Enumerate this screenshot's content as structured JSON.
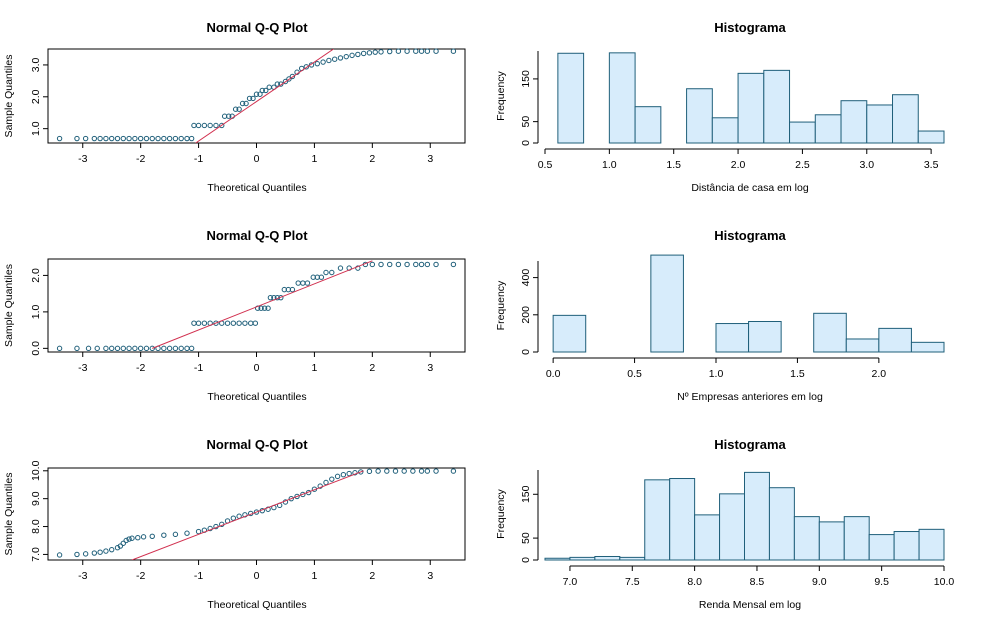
{
  "chart_data": [
    {
      "type": "scatter",
      "title": "Normal Q-Q Plot",
      "xlabel": "Theoretical Quantiles",
      "ylabel": "Sample Quantiles",
      "xlim": [
        -3.6,
        3.6
      ],
      "ylim": [
        0.55,
        3.5
      ],
      "xticks": [
        -3,
        -2,
        -1,
        0,
        1,
        2,
        3
      ],
      "yticks": [
        1.0,
        2.0,
        3.0
      ],
      "ytick_labels": [
        "1.0",
        "2.0",
        "3.0"
      ],
      "qq_line": {
        "x": [
          -1.05,
          1.33
        ],
        "y": [
          0.55,
          3.5
        ]
      },
      "points": [
        [
          -3.4,
          0.69
        ],
        [
          -3.1,
          0.69
        ],
        [
          -2.95,
          0.69
        ],
        [
          -2.8,
          0.69
        ],
        [
          -2.7,
          0.69
        ],
        [
          -2.6,
          0.69
        ],
        [
          -2.5,
          0.69
        ],
        [
          -2.4,
          0.69
        ],
        [
          -2.3,
          0.69
        ],
        [
          -2.2,
          0.69
        ],
        [
          -2.1,
          0.69
        ],
        [
          -2.0,
          0.69
        ],
        [
          -1.9,
          0.69
        ],
        [
          -1.8,
          0.69
        ],
        [
          -1.7,
          0.69
        ],
        [
          -1.6,
          0.69
        ],
        [
          -1.5,
          0.69
        ],
        [
          -1.4,
          0.69
        ],
        [
          -1.3,
          0.69
        ],
        [
          -1.2,
          0.69
        ],
        [
          -1.12,
          0.69
        ],
        [
          -1.08,
          1.1
        ],
        [
          -1.0,
          1.1
        ],
        [
          -0.9,
          1.1
        ],
        [
          -0.8,
          1.1
        ],
        [
          -0.7,
          1.1
        ],
        [
          -0.6,
          1.1
        ],
        [
          -0.55,
          1.39
        ],
        [
          -0.48,
          1.39
        ],
        [
          -0.42,
          1.39
        ],
        [
          -0.36,
          1.61
        ],
        [
          -0.3,
          1.61
        ],
        [
          -0.24,
          1.79
        ],
        [
          -0.18,
          1.79
        ],
        [
          -0.12,
          1.95
        ],
        [
          -0.06,
          1.95
        ],
        [
          0.0,
          2.08
        ],
        [
          0.06,
          2.08
        ],
        [
          0.1,
          2.2
        ],
        [
          0.16,
          2.2
        ],
        [
          0.22,
          2.3
        ],
        [
          0.3,
          2.3
        ],
        [
          0.36,
          2.4
        ],
        [
          0.42,
          2.4
        ],
        [
          0.5,
          2.48
        ],
        [
          0.56,
          2.56
        ],
        [
          0.62,
          2.64
        ],
        [
          0.7,
          2.77
        ],
        [
          0.78,
          2.89
        ],
        [
          0.86,
          2.94
        ],
        [
          0.95,
          3.0
        ],
        [
          1.05,
          3.04
        ],
        [
          1.15,
          3.09
        ],
        [
          1.25,
          3.14
        ],
        [
          1.35,
          3.18
        ],
        [
          1.45,
          3.22
        ],
        [
          1.55,
          3.26
        ],
        [
          1.65,
          3.3
        ],
        [
          1.75,
          3.33
        ],
        [
          1.85,
          3.36
        ],
        [
          1.95,
          3.38
        ],
        [
          2.05,
          3.4
        ],
        [
          2.15,
          3.41
        ],
        [
          2.3,
          3.42
        ],
        [
          2.45,
          3.43
        ],
        [
          2.6,
          3.43
        ],
        [
          2.75,
          3.43
        ],
        [
          2.85,
          3.43
        ],
        [
          2.95,
          3.43
        ],
        [
          3.1,
          3.43
        ],
        [
          3.4,
          3.43
        ]
      ]
    },
    {
      "type": "bar",
      "title": "Histograma",
      "xlabel": "Distância de casa em log",
      "ylabel": "Frequency",
      "xlim": [
        0.5,
        3.6
      ],
      "ylim": [
        0,
        220
      ],
      "xticks": [
        0.5,
        1.0,
        1.5,
        2.0,
        2.5,
        3.0,
        3.5
      ],
      "xtick_labels": [
        "0.5",
        "1.0",
        "1.5",
        "2.0",
        "2.5",
        "3.0",
        "3.5"
      ],
      "yticks": [
        0,
        50,
        150
      ],
      "ytick_labels": [
        "0",
        "50",
        "150"
      ],
      "bin_edges": [
        0.6,
        0.8,
        1.0,
        1.2,
        1.4,
        1.6,
        1.8,
        2.0,
        2.2,
        2.4,
        2.6,
        2.8,
        3.0,
        3.2,
        3.4,
        3.6
      ],
      "values": [
        210,
        0,
        211,
        85,
        0,
        127,
        59,
        163,
        170,
        49,
        66,
        99,
        89,
        113,
        28
      ]
    },
    {
      "type": "scatter",
      "title": "Normal Q-Q Plot",
      "xlabel": "Theoretical Quantiles",
      "ylabel": "Sample Quantiles",
      "xlim": [
        -3.6,
        3.6
      ],
      "ylim": [
        -0.1,
        2.45
      ],
      "xticks": [
        -3,
        -2,
        -1,
        0,
        1,
        2,
        3
      ],
      "yticks": [
        0.0,
        1.0,
        2.0
      ],
      "ytick_labels": [
        "0.0",
        "1.0",
        "2.0"
      ],
      "qq_line": {
        "x": [
          -1.8,
          2.0
        ],
        "y": [
          0.0,
          2.4
        ]
      },
      "points": [
        [
          -3.4,
          0.0
        ],
        [
          -3.1,
          0.0
        ],
        [
          -2.9,
          0.0
        ],
        [
          -2.75,
          0.0
        ],
        [
          -2.6,
          0.0
        ],
        [
          -2.5,
          0.0
        ],
        [
          -2.4,
          0.0
        ],
        [
          -2.3,
          0.0
        ],
        [
          -2.2,
          0.0
        ],
        [
          -2.1,
          0.0
        ],
        [
          -2.0,
          0.0
        ],
        [
          -1.9,
          0.0
        ],
        [
          -1.8,
          0.0
        ],
        [
          -1.7,
          0.0
        ],
        [
          -1.6,
          0.0
        ],
        [
          -1.5,
          0.0
        ],
        [
          -1.4,
          0.0
        ],
        [
          -1.3,
          0.0
        ],
        [
          -1.2,
          0.0
        ],
        [
          -1.12,
          0.0
        ],
        [
          -1.08,
          0.69
        ],
        [
          -1.0,
          0.69
        ],
        [
          -0.9,
          0.69
        ],
        [
          -0.8,
          0.69
        ],
        [
          -0.7,
          0.69
        ],
        [
          -0.6,
          0.69
        ],
        [
          -0.5,
          0.69
        ],
        [
          -0.4,
          0.69
        ],
        [
          -0.3,
          0.69
        ],
        [
          -0.2,
          0.69
        ],
        [
          -0.1,
          0.69
        ],
        [
          -0.02,
          0.69
        ],
        [
          0.02,
          1.1
        ],
        [
          0.08,
          1.1
        ],
        [
          0.14,
          1.1
        ],
        [
          0.2,
          1.1
        ],
        [
          0.24,
          1.39
        ],
        [
          0.3,
          1.39
        ],
        [
          0.36,
          1.39
        ],
        [
          0.42,
          1.39
        ],
        [
          0.48,
          1.61
        ],
        [
          0.55,
          1.61
        ],
        [
          0.62,
          1.61
        ],
        [
          0.72,
          1.79
        ],
        [
          0.8,
          1.79
        ],
        [
          0.88,
          1.79
        ],
        [
          0.98,
          1.95
        ],
        [
          1.05,
          1.95
        ],
        [
          1.12,
          1.95
        ],
        [
          1.2,
          2.08
        ],
        [
          1.3,
          2.08
        ],
        [
          1.45,
          2.2
        ],
        [
          1.6,
          2.2
        ],
        [
          1.75,
          2.2
        ],
        [
          1.88,
          2.3
        ],
        [
          2.0,
          2.3
        ],
        [
          2.15,
          2.3
        ],
        [
          2.3,
          2.3
        ],
        [
          2.45,
          2.3
        ],
        [
          2.6,
          2.3
        ],
        [
          2.75,
          2.3
        ],
        [
          2.85,
          2.3
        ],
        [
          2.95,
          2.3
        ],
        [
          3.1,
          2.3
        ],
        [
          3.4,
          2.3
        ]
      ]
    },
    {
      "type": "bar",
      "title": "Histograma",
      "xlabel": "Nº Empresas anteriores em log",
      "ylabel": "Frequency",
      "xlim": [
        -0.05,
        2.4
      ],
      "ylim": [
        0,
        500
      ],
      "xticks": [
        0.0,
        0.5,
        1.0,
        1.5,
        2.0
      ],
      "xtick_labels": [
        "0.0",
        "0.5",
        "1.0",
        "1.5",
        "2.0"
      ],
      "yticks": [
        0,
        200,
        400
      ],
      "ytick_labels": [
        "0",
        "200",
        "400"
      ],
      "bin_edges": [
        0.0,
        0.2,
        0.4,
        0.6,
        0.8,
        1.0,
        1.2,
        1.4,
        1.6,
        1.8,
        2.0,
        2.2,
        2.4
      ],
      "values": [
        197,
        0,
        0,
        521,
        0,
        153,
        164,
        0,
        208,
        70,
        127,
        52
      ]
    },
    {
      "type": "scatter",
      "title": "Normal Q-Q Plot",
      "xlabel": "Theoretical Quantiles",
      "ylabel": "Sample Quantiles",
      "xlim": [
        -3.6,
        3.6
      ],
      "ylim": [
        6.8,
        10.1
      ],
      "xticks": [
        -3,
        -2,
        -1,
        0,
        1,
        2,
        3
      ],
      "yticks": [
        7.0,
        8.0,
        9.0,
        10.0
      ],
      "ytick_labels": [
        "7.0",
        "8.0",
        "9.0",
        "10.0"
      ],
      "qq_line": {
        "x": [
          -2.15,
          1.85
        ],
        "y": [
          6.8,
          10.0
        ]
      },
      "points": [
        [
          -3.4,
          6.98
        ],
        [
          -3.1,
          7.0
        ],
        [
          -2.95,
          7.02
        ],
        [
          -2.8,
          7.05
        ],
        [
          -2.7,
          7.08
        ],
        [
          -2.6,
          7.12
        ],
        [
          -2.5,
          7.17
        ],
        [
          -2.4,
          7.24
        ],
        [
          -2.35,
          7.3
        ],
        [
          -2.3,
          7.4
        ],
        [
          -2.25,
          7.5
        ],
        [
          -2.2,
          7.55
        ],
        [
          -2.15,
          7.58
        ],
        [
          -2.05,
          7.6
        ],
        [
          -1.95,
          7.63
        ],
        [
          -1.8,
          7.65
        ],
        [
          -1.6,
          7.69
        ],
        [
          -1.4,
          7.72
        ],
        [
          -1.2,
          7.76
        ],
        [
          -1.0,
          7.82
        ],
        [
          -0.9,
          7.87
        ],
        [
          -0.8,
          7.93
        ],
        [
          -0.7,
          8.0
        ],
        [
          -0.6,
          8.08
        ],
        [
          -0.5,
          8.2
        ],
        [
          -0.4,
          8.3
        ],
        [
          -0.3,
          8.37
        ],
        [
          -0.2,
          8.42
        ],
        [
          -0.1,
          8.47
        ],
        [
          0.0,
          8.52
        ],
        [
          0.1,
          8.57
        ],
        [
          0.2,
          8.62
        ],
        [
          0.3,
          8.68
        ],
        [
          0.4,
          8.76
        ],
        [
          0.5,
          8.88
        ],
        [
          0.6,
          9.0
        ],
        [
          0.7,
          9.08
        ],
        [
          0.8,
          9.15
        ],
        [
          0.9,
          9.22
        ],
        [
          1.0,
          9.34
        ],
        [
          1.1,
          9.45
        ],
        [
          1.2,
          9.58
        ],
        [
          1.3,
          9.7
        ],
        [
          1.4,
          9.8
        ],
        [
          1.5,
          9.86
        ],
        [
          1.6,
          9.9
        ],
        [
          1.7,
          9.93
        ],
        [
          1.8,
          9.96
        ],
        [
          1.95,
          9.98
        ],
        [
          2.1,
          9.99
        ],
        [
          2.25,
          9.99
        ],
        [
          2.4,
          9.99
        ],
        [
          2.55,
          9.99
        ],
        [
          2.7,
          9.99
        ],
        [
          2.85,
          9.99
        ],
        [
          2.95,
          9.99
        ],
        [
          3.1,
          9.99
        ],
        [
          3.4,
          9.99
        ]
      ]
    },
    {
      "type": "bar",
      "title": "Histograma",
      "xlabel": "Renda Mensal em log",
      "ylabel": "Frequency",
      "xlim": [
        6.8,
        10.0
      ],
      "ylim": [
        0,
        210
      ],
      "xticks": [
        7.0,
        7.5,
        8.0,
        8.5,
        9.0,
        9.5,
        10.0
      ],
      "xtick_labels": [
        "7.0",
        "7.5",
        "8.0",
        "8.5",
        "9.0",
        "9.5",
        "10.0"
      ],
      "yticks": [
        0,
        50,
        150
      ],
      "ytick_labels": [
        "0",
        "50",
        "150"
      ],
      "bin_edges": [
        6.8,
        7.0,
        7.2,
        7.4,
        7.6,
        7.8,
        8.0,
        8.2,
        8.4,
        8.6,
        8.8,
        9.0,
        9.2,
        9.4,
        9.6,
        9.8,
        10.0
      ],
      "values": [
        4,
        6,
        8,
        6,
        183,
        186,
        103,
        151,
        200,
        165,
        99,
        87,
        99,
        58,
        65,
        70
      ]
    }
  ]
}
